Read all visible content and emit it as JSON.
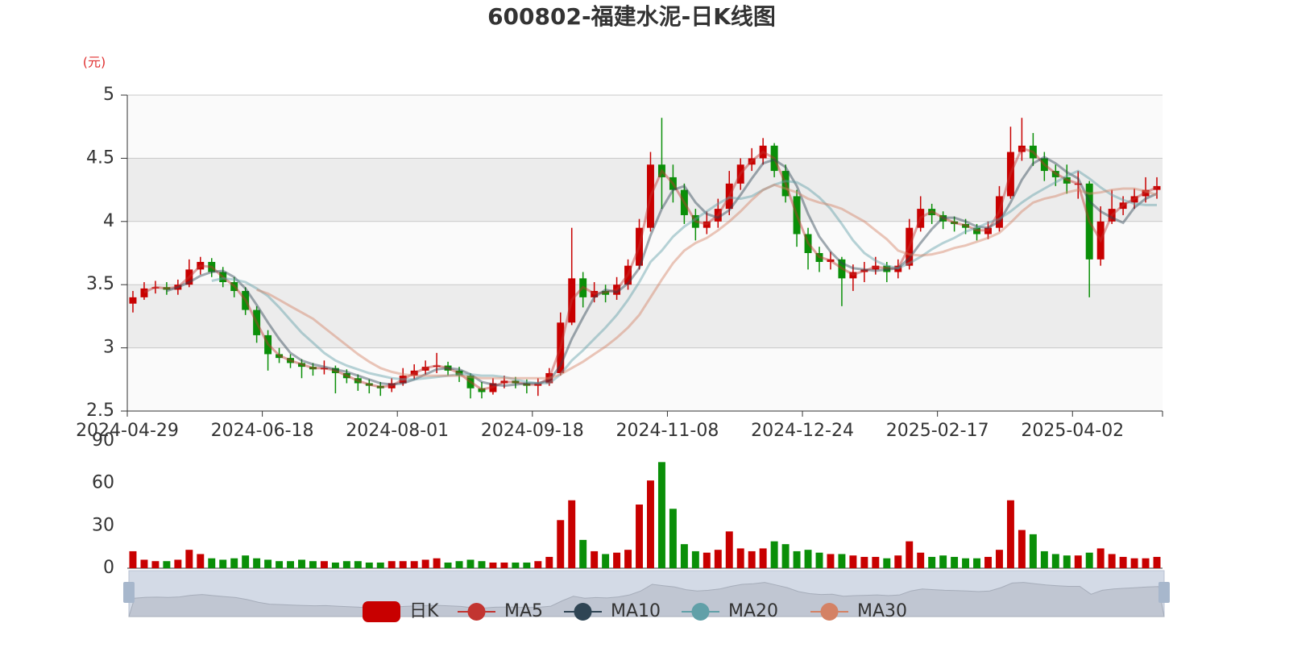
{
  "chart_data": [
    {
      "type": "candlestick",
      "title": "600802-福建水泥-日K线图",
      "y_unit": "(元)",
      "categories": [
        "2024-04-29",
        null,
        null,
        null,
        null,
        null,
        null,
        null,
        null,
        null,
        null,
        null,
        "2024-06-18",
        null,
        null,
        null,
        null,
        null,
        null,
        null,
        null,
        null,
        null,
        null,
        "2024-08-01",
        null,
        null,
        null,
        null,
        null,
        null,
        null,
        null,
        null,
        null,
        null,
        "2024-09-18",
        null,
        null,
        null,
        null,
        null,
        null,
        null,
        null,
        null,
        null,
        null,
        "2024-11-08",
        null,
        null,
        null,
        null,
        null,
        null,
        null,
        null,
        null,
        null,
        null,
        "2024-12-24",
        null,
        null,
        null,
        null,
        null,
        null,
        null,
        null,
        null,
        null,
        null,
        "2025-02-17",
        null,
        null,
        null,
        null,
        null,
        null,
        null,
        null,
        null,
        null,
        null,
        "2025-04-02",
        null,
        null,
        null,
        null,
        null,
        null,
        null
      ],
      "ylim": [
        2.5,
        5
      ],
      "yticks": [
        2.5,
        3,
        3.5,
        4,
        4.5,
        5
      ],
      "split_area": true,
      "up_color": "#c80000",
      "down_color": "#0a8f08",
      "series": [
        {
          "name": "日K",
          "color": "#c80000",
          "open": [
            3.35,
            3.4,
            3.47,
            3.48,
            3.46,
            3.5,
            3.62,
            3.68,
            3.6,
            3.52,
            3.45,
            3.3,
            3.1,
            2.95,
            2.92,
            2.88,
            2.85,
            2.83,
            2.84,
            2.8,
            2.76,
            2.72,
            2.7,
            2.68,
            2.72,
            2.78,
            2.82,
            2.85,
            2.86,
            2.82,
            2.78,
            2.68,
            2.65,
            2.72,
            2.74,
            2.72,
            2.7,
            2.72,
            2.8,
            3.2,
            3.55,
            3.4,
            3.45,
            3.42,
            3.5,
            3.65,
            3.95,
            4.45,
            4.35,
            4.25,
            4.05,
            3.95,
            4.0,
            4.1,
            4.3,
            4.45,
            4.5,
            4.6,
            4.4,
            4.2,
            3.9,
            3.75,
            3.68,
            3.7,
            3.55,
            3.6,
            3.62,
            3.65,
            3.6,
            3.65,
            3.95,
            4.1,
            4.05,
            4.0,
            3.98,
            3.95,
            3.9,
            3.95,
            4.2,
            4.55,
            4.6,
            4.5,
            4.4,
            4.35,
            4.3,
            4.3,
            3.7,
            4.0,
            4.1,
            4.15,
            4.2,
            4.25
          ],
          "close": [
            3.4,
            3.47,
            3.48,
            3.46,
            3.5,
            3.62,
            3.68,
            3.6,
            3.52,
            3.45,
            3.3,
            3.1,
            2.95,
            2.92,
            2.88,
            2.85,
            2.83,
            2.84,
            2.8,
            2.76,
            2.72,
            2.7,
            2.68,
            2.72,
            2.78,
            2.82,
            2.85,
            2.86,
            2.82,
            2.78,
            2.68,
            2.65,
            2.72,
            2.74,
            2.72,
            2.7,
            2.72,
            2.8,
            3.2,
            3.55,
            3.4,
            3.45,
            3.42,
            3.5,
            3.65,
            3.95,
            4.45,
            4.35,
            4.25,
            4.05,
            3.95,
            4.0,
            4.1,
            4.3,
            4.45,
            4.5,
            4.6,
            4.4,
            4.2,
            3.9,
            3.75,
            3.68,
            3.7,
            3.55,
            3.6,
            3.62,
            3.65,
            3.6,
            3.65,
            3.95,
            4.1,
            4.05,
            4.0,
            3.98,
            3.95,
            3.9,
            3.95,
            4.2,
            4.55,
            4.6,
            4.5,
            4.4,
            4.35,
            4.3,
            4.3,
            3.7,
            4.0,
            4.1,
            4.15,
            4.2,
            4.25,
            4.28
          ],
          "low": [
            3.28,
            3.38,
            3.43,
            3.42,
            3.42,
            3.48,
            3.58,
            3.56,
            3.48,
            3.4,
            3.26,
            3.04,
            2.82,
            2.88,
            2.84,
            2.76,
            2.78,
            2.79,
            2.64,
            2.72,
            2.66,
            2.64,
            2.62,
            2.65,
            2.7,
            2.75,
            2.79,
            2.8,
            2.78,
            2.73,
            2.6,
            2.6,
            2.63,
            2.68,
            2.68,
            2.64,
            2.62,
            2.7,
            2.78,
            3.18,
            3.32,
            3.36,
            3.36,
            3.38,
            3.46,
            3.62,
            3.92,
            4.1,
            4.15,
            3.98,
            3.85,
            3.9,
            3.95,
            4.05,
            4.25,
            4.4,
            4.45,
            4.35,
            4.15,
            3.8,
            3.62,
            3.6,
            3.62,
            3.33,
            3.45,
            3.52,
            3.58,
            3.52,
            3.55,
            3.62,
            3.92,
            3.98,
            3.94,
            3.92,
            3.9,
            3.85,
            3.86,
            3.92,
            4.18,
            4.48,
            4.44,
            4.32,
            4.28,
            4.22,
            4.18,
            3.4,
            3.65,
            3.98,
            4.05,
            4.1,
            4.15,
            4.18
          ],
          "high": [
            3.45,
            3.52,
            3.53,
            3.52,
            3.54,
            3.7,
            3.72,
            3.71,
            3.64,
            3.56,
            3.48,
            3.33,
            3.14,
            3.0,
            2.95,
            2.91,
            2.88,
            2.9,
            2.86,
            2.83,
            2.79,
            2.75,
            2.73,
            2.76,
            2.84,
            2.87,
            2.9,
            2.96,
            2.89,
            2.85,
            2.8,
            2.73,
            2.76,
            2.78,
            2.77,
            2.75,
            2.76,
            2.84,
            3.28,
            3.95,
            3.6,
            3.52,
            3.5,
            3.56,
            3.7,
            4.02,
            4.55,
            4.82,
            4.45,
            4.3,
            4.1,
            4.08,
            4.18,
            4.4,
            4.5,
            4.58,
            4.66,
            4.62,
            4.45,
            4.25,
            3.95,
            3.8,
            3.76,
            3.72,
            3.66,
            3.68,
            3.72,
            3.68,
            3.7,
            4.02,
            4.2,
            4.14,
            4.08,
            4.04,
            4.02,
            3.98,
            4.0,
            4.28,
            4.75,
            4.82,
            4.7,
            4.55,
            4.45,
            4.45,
            4.4,
            4.32,
            4.12,
            4.25,
            4.2,
            4.26,
            4.35,
            4.35
          ]
        },
        {
          "name": "MA5",
          "color": "#c23531",
          "values": [
            null,
            3.44,
            3.48,
            3.47,
            3.48,
            3.56,
            3.65,
            3.64,
            3.56,
            3.49,
            3.38,
            3.2,
            3.03,
            2.94,
            2.9,
            2.87,
            2.84,
            2.84,
            2.82,
            2.78,
            2.74,
            2.71,
            2.69,
            2.7,
            2.75,
            2.8,
            2.84,
            2.86,
            2.84,
            2.8,
            2.73,
            2.67,
            2.69,
            2.73,
            2.73,
            2.71,
            2.71,
            2.76,
            3.0,
            3.38,
            3.48,
            3.43,
            3.44,
            3.46,
            3.58,
            3.8,
            4.2,
            4.4,
            4.3,
            4.15,
            4.0,
            3.98,
            4.05,
            4.2,
            4.38,
            4.48,
            4.55,
            4.5,
            4.3,
            4.05,
            3.83,
            3.72,
            3.69,
            3.63,
            3.58,
            3.61,
            3.64,
            3.63,
            3.63,
            3.8,
            4.03,
            4.08,
            4.03,
            3.99,
            3.97,
            3.93,
            3.93,
            4.08,
            4.38,
            4.58,
            4.55,
            4.45,
            4.38,
            4.33,
            4.3,
            4.0,
            3.85,
            4.05,
            4.13,
            4.18,
            4.23,
            4.27
          ]
        },
        {
          "name": "MA10",
          "color": "#2f4554",
          "values": [
            null,
            null,
            null,
            3.45,
            3.48,
            3.52,
            3.57,
            3.6,
            3.61,
            3.56,
            3.47,
            3.34,
            3.2,
            3.07,
            2.96,
            2.9,
            2.87,
            2.85,
            2.83,
            2.81,
            2.78,
            2.75,
            2.72,
            2.71,
            2.72,
            2.75,
            2.79,
            2.83,
            2.84,
            2.83,
            2.79,
            2.73,
            2.71,
            2.7,
            2.71,
            2.72,
            2.72,
            2.74,
            2.86,
            3.07,
            3.24,
            3.4,
            3.46,
            3.44,
            3.51,
            3.63,
            3.89,
            4.1,
            4.25,
            4.28,
            4.15,
            4.06,
            4.03,
            4.09,
            4.21,
            4.34,
            4.46,
            4.49,
            4.43,
            4.28,
            4.06,
            3.88,
            3.76,
            3.67,
            3.63,
            3.62,
            3.61,
            3.62,
            3.63,
            3.71,
            3.83,
            3.94,
            4.03,
            4.03,
            4.0,
            3.96,
            3.95,
            4.0,
            4.15,
            4.33,
            4.46,
            4.51,
            4.46,
            4.39,
            4.34,
            4.16,
            4.08,
            4.03,
            3.99,
            4.11,
            4.18,
            4.22
          ]
        },
        {
          "name": "MA20",
          "color": "#61a0a8",
          "values": [
            null,
            null,
            null,
            null,
            null,
            null,
            null,
            3.53,
            3.55,
            3.54,
            3.52,
            3.47,
            3.41,
            3.32,
            3.22,
            3.12,
            3.04,
            2.96,
            2.9,
            2.86,
            2.83,
            2.8,
            2.78,
            2.76,
            2.75,
            2.75,
            2.76,
            2.77,
            2.78,
            2.79,
            2.79,
            2.78,
            2.78,
            2.77,
            2.75,
            2.73,
            2.72,
            2.72,
            2.79,
            2.9,
            2.98,
            3.07,
            3.16,
            3.26,
            3.38,
            3.52,
            3.68,
            3.77,
            3.88,
            3.96,
            4.02,
            4.08,
            4.14,
            4.19,
            4.18,
            4.2,
            4.25,
            4.29,
            4.32,
            4.31,
            4.26,
            4.19,
            4.1,
            3.98,
            3.85,
            3.75,
            3.69,
            3.65,
            3.63,
            3.67,
            3.72,
            3.78,
            3.83,
            3.87,
            3.92,
            3.95,
            3.99,
            4.02,
            4.08,
            4.15,
            4.21,
            4.26,
            4.31,
            4.36,
            4.4,
            4.34,
            4.27,
            4.21,
            4.17,
            4.14,
            4.13,
            4.13
          ]
        },
        {
          "name": "MA30",
          "color": "#d48265",
          "values": [
            null,
            null,
            null,
            null,
            null,
            null,
            null,
            null,
            null,
            null,
            null,
            3.46,
            3.43,
            3.38,
            3.33,
            3.28,
            3.23,
            3.16,
            3.09,
            3.02,
            2.95,
            2.89,
            2.84,
            2.81,
            2.79,
            2.78,
            2.78,
            2.78,
            2.78,
            2.78,
            2.77,
            2.76,
            2.76,
            2.76,
            2.76,
            2.76,
            2.76,
            2.76,
            2.79,
            2.84,
            2.89,
            2.95,
            3.01,
            3.08,
            3.16,
            3.26,
            3.4,
            3.54,
            3.67,
            3.77,
            3.83,
            3.87,
            3.93,
            4.0,
            4.08,
            4.17,
            4.25,
            4.29,
            4.26,
            4.23,
            4.18,
            4.15,
            4.13,
            4.1,
            4.05,
            4.0,
            3.93,
            3.86,
            3.77,
            3.74,
            3.73,
            3.74,
            3.76,
            3.79,
            3.81,
            3.84,
            3.87,
            3.91,
            3.99,
            4.08,
            4.15,
            4.18,
            4.2,
            4.23,
            4.25,
            4.22,
            4.23,
            4.25,
            4.26,
            4.26,
            4.24,
            4.21
          ]
        }
      ]
    },
    {
      "type": "bar",
      "values": [
        12,
        6,
        5,
        5,
        6,
        13,
        10,
        7,
        6,
        7,
        9,
        7,
        6,
        5,
        5,
        6,
        5,
        5,
        4,
        5,
        5,
        4,
        4,
        5,
        5,
        5,
        6,
        7,
        4,
        5,
        6,
        5,
        4,
        4,
        4,
        4,
        5,
        8,
        34,
        48,
        20,
        12,
        10,
        11,
        13,
        45,
        62,
        75,
        42,
        17,
        12,
        11,
        13,
        26,
        14,
        12,
        14,
        19,
        17,
        12,
        13,
        11,
        10,
        10,
        9,
        8,
        8,
        7,
        9,
        19,
        11,
        8,
        9,
        8,
        7,
        7,
        8,
        13,
        48,
        27,
        24,
        12,
        10,
        9,
        9,
        11,
        14,
        10,
        8,
        7,
        7,
        8
      ],
      "ylim": [
        0,
        90
      ],
      "yticks": [
        0,
        30,
        60,
        90
      ]
    }
  ]
}
